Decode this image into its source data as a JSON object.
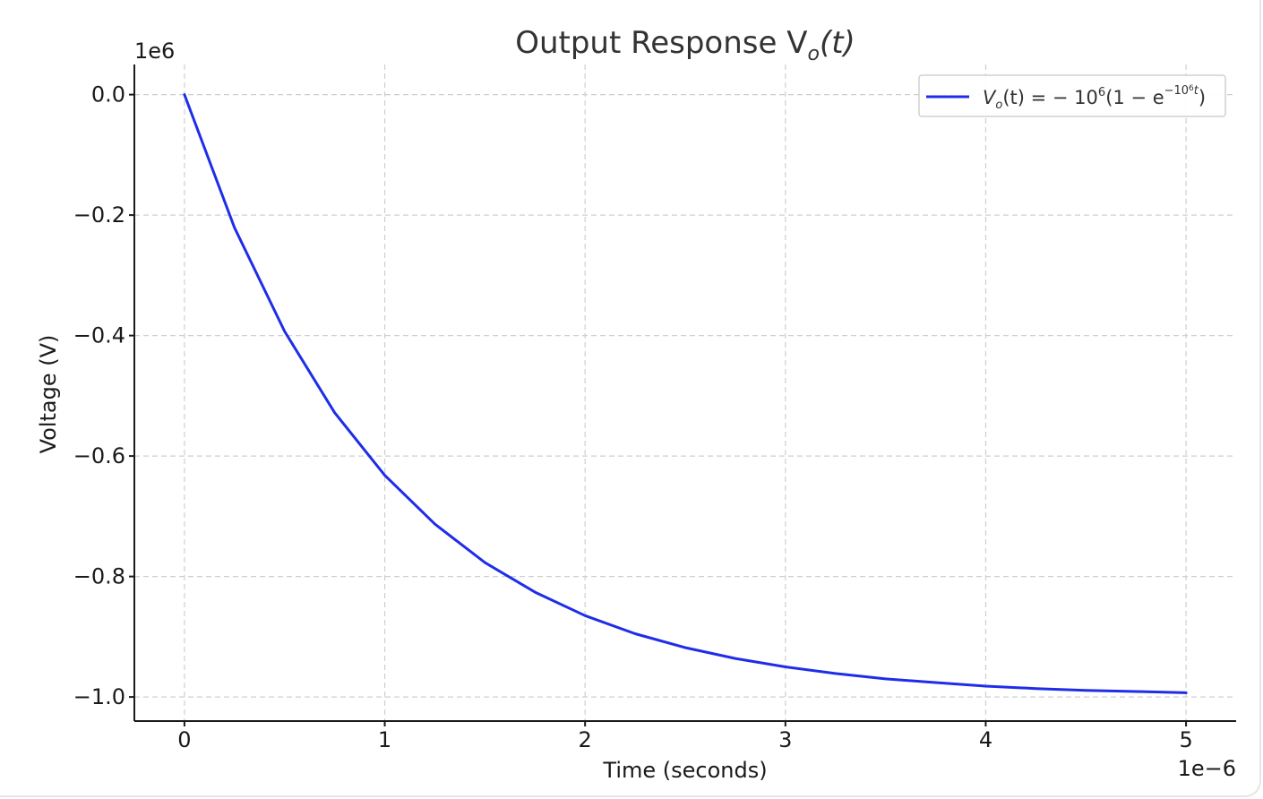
{
  "chart_data": {
    "type": "line",
    "title": "Output Response V",
    "title_sub": "o",
    "title_arg": "(t)",
    "xlabel": "Time (seconds)",
    "ylabel": "Voltage (V)",
    "x_offset_text": "1e−6",
    "y_offset_text": "1e6",
    "xlim": [
      -0.25,
      5.25
    ],
    "ylim": [
      -1.04,
      0.05
    ],
    "x_ticks": [
      0,
      1,
      2,
      3,
      4,
      5
    ],
    "x_tick_labels": [
      "0",
      "1",
      "2",
      "3",
      "4",
      "5"
    ],
    "y_ticks": [
      0.0,
      -0.2,
      -0.4,
      -0.6,
      -0.8,
      -1.0
    ],
    "y_tick_labels": [
      "0.0",
      "−0.2",
      "−0.4",
      "−0.6",
      "−0.8",
      "−1.0"
    ],
    "grid": true,
    "legend_position": "top-right",
    "series": [
      {
        "name": "V_o(t) = −10^6(1 − e^(−10^6 t))",
        "color": "#1f2de8",
        "x": [
          0,
          0.25,
          0.5,
          0.75,
          1.0,
          1.25,
          1.5,
          1.75,
          2.0,
          2.25,
          2.5,
          2.75,
          3.0,
          3.25,
          3.5,
          3.75,
          4.0,
          4.25,
          4.5,
          4.75,
          5.0
        ],
        "y": [
          0,
          -0.221,
          -0.393,
          -0.528,
          -0.632,
          -0.713,
          -0.777,
          -0.826,
          -0.865,
          -0.895,
          -0.918,
          -0.936,
          -0.95,
          -0.961,
          -0.97,
          -0.976,
          -0.982,
          -0.986,
          -0.989,
          -0.991,
          -0.993
        ]
      }
    ]
  },
  "legend": {
    "v": "V",
    "o_sub": "o",
    "mid": "(t) = − 10",
    "six": "6",
    "paren": "(1 − e",
    "exp": "−10",
    "exp_six": "6",
    "exp_t": "t",
    "close": ")"
  }
}
